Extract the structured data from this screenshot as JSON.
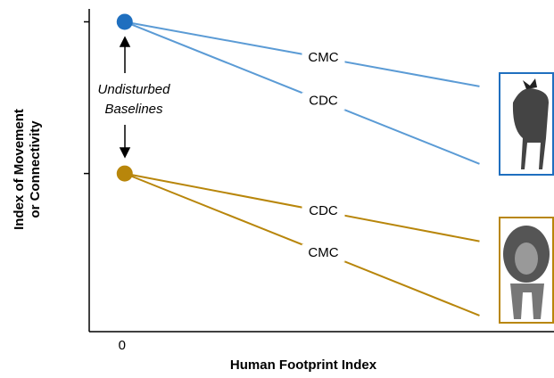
{
  "chart_data": {
    "type": "line",
    "xlabel": "Human Footprint Index",
    "ylabel": [
      "Index of Movement",
      "or Connectivity"
    ],
    "annotation": [
      "Undisturbed",
      "Baselines"
    ],
    "x": [
      0,
      10
    ],
    "xlim": [
      -1,
      12.1
    ],
    "xticks": [
      0
    ],
    "ylim": [
      0,
      10
    ],
    "series": [
      {
        "name": "CMC",
        "color": "#5b9bd5",
        "values": [
          9.6,
          7.6
        ]
      },
      {
        "name": "CDC",
        "color": "#5b9bd5",
        "values": [
          9.6,
          5.2
        ]
      },
      {
        "name": "CDC",
        "color": "#b8860b",
        "values": [
          4.9,
          2.8
        ]
      },
      {
        "name": "CMC",
        "color": "#b8860b",
        "values": [
          4.9,
          0.5
        ]
      }
    ],
    "marker_colors": [
      "#1f6fbf",
      "#b8860b"
    ]
  }
}
